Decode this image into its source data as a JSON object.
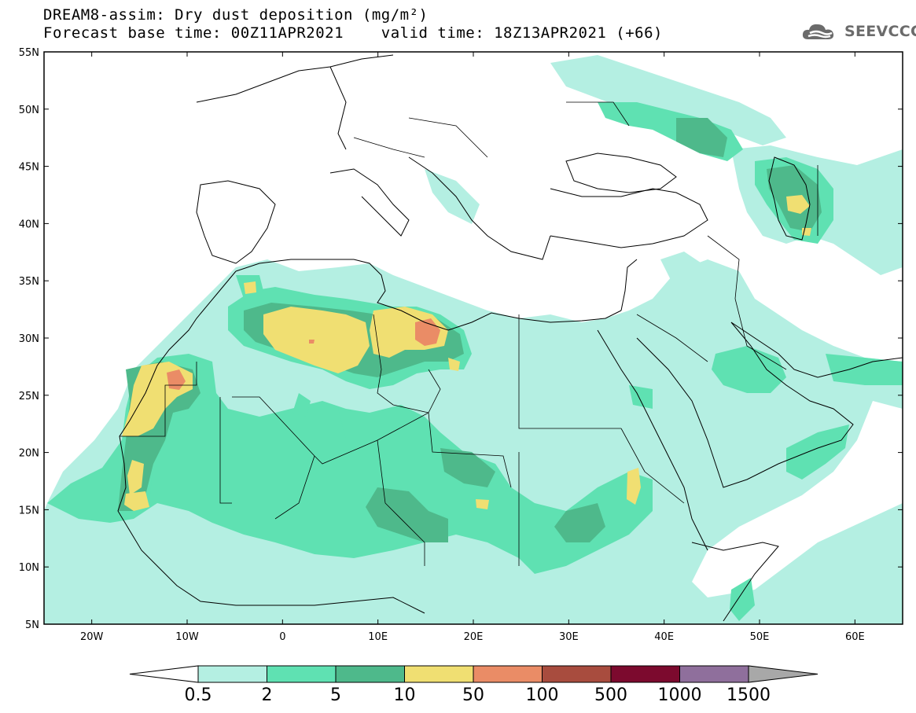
{
  "header": {
    "title_line1": "DREAM8-assim: Dry dust deposition (mg/m²)",
    "title_line2": "Forecast base time: 00Z11APR2021    valid time: 18Z13APR2021 (+66)"
  },
  "logo": {
    "text": "SEEVCCC",
    "icon": "cloud-logo-icon"
  },
  "map": {
    "lon_range": [
      -25,
      65
    ],
    "lat_range": [
      5,
      55
    ],
    "lat_ticks": [
      "55N",
      "50N",
      "45N",
      "40N",
      "35N",
      "30N",
      "25N",
      "20N",
      "15N",
      "10N",
      "5N"
    ],
    "lat_values": [
      55,
      50,
      45,
      40,
      35,
      30,
      25,
      20,
      15,
      10,
      5
    ],
    "lon_ticks": [
      "20W",
      "10W",
      "0",
      "10E",
      "20E",
      "30E",
      "40E",
      "50E",
      "60E"
    ],
    "lon_values": [
      -20,
      -10,
      0,
      10,
      20,
      30,
      40,
      50,
      60
    ]
  },
  "colorbar": {
    "labels": [
      "0.5",
      "2",
      "5",
      "10",
      "50",
      "100",
      "500",
      "1000",
      "1500"
    ],
    "colors": [
      "#b4efe2",
      "#5fe1b2",
      "#4eb98b",
      "#f0df72",
      "#ea8c66",
      "#a84c3e",
      "#7c0a2e",
      "#8f6f9c"
    ],
    "under_color": "#ffffff",
    "over_color": "#a8a8a8"
  },
  "dust_colors": {
    "level1": "#b4efe2",
    "level2": "#5fe1b2",
    "level3": "#4eb98b",
    "level4": "#f0df72",
    "level5": "#ea8c66"
  }
}
